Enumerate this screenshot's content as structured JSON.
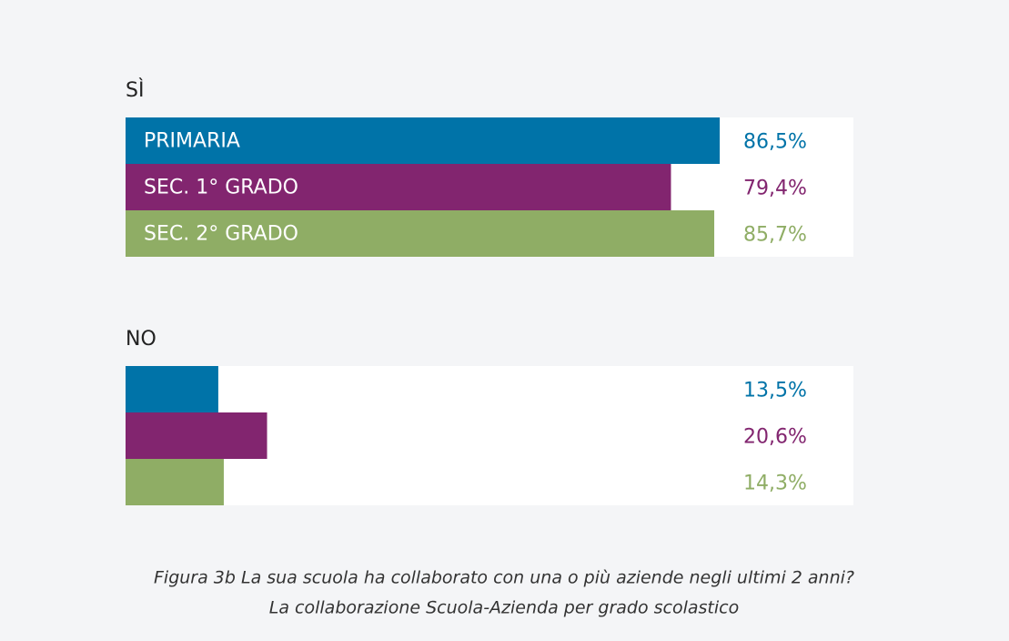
{
  "chart_data": {
    "type": "bar",
    "title": "Figura 3b La sua scuola ha collaborato con una o più aziende negli ultimi 2 anni?",
    "subtitle": "La collaborazione Scuola-Azienda per grado scolastico",
    "categories": [
      "PRIMARIA",
      "SEC. 1° GRADO",
      "SEC. 2° GRADO"
    ],
    "colors": [
      "#0073a8",
      "#82256f",
      "#8fad65"
    ],
    "xlim": [
      0,
      100
    ],
    "series": [
      {
        "name": "SÌ",
        "values": [
          86.5,
          79.4,
          85.7
        ],
        "value_labels": [
          "86,5%",
          "79,4%",
          "85,7%"
        ]
      },
      {
        "name": "NO",
        "values": [
          13.5,
          20.6,
          14.3
        ],
        "value_labels": [
          "13,5%",
          "20,6%",
          "14,3%"
        ]
      }
    ]
  }
}
